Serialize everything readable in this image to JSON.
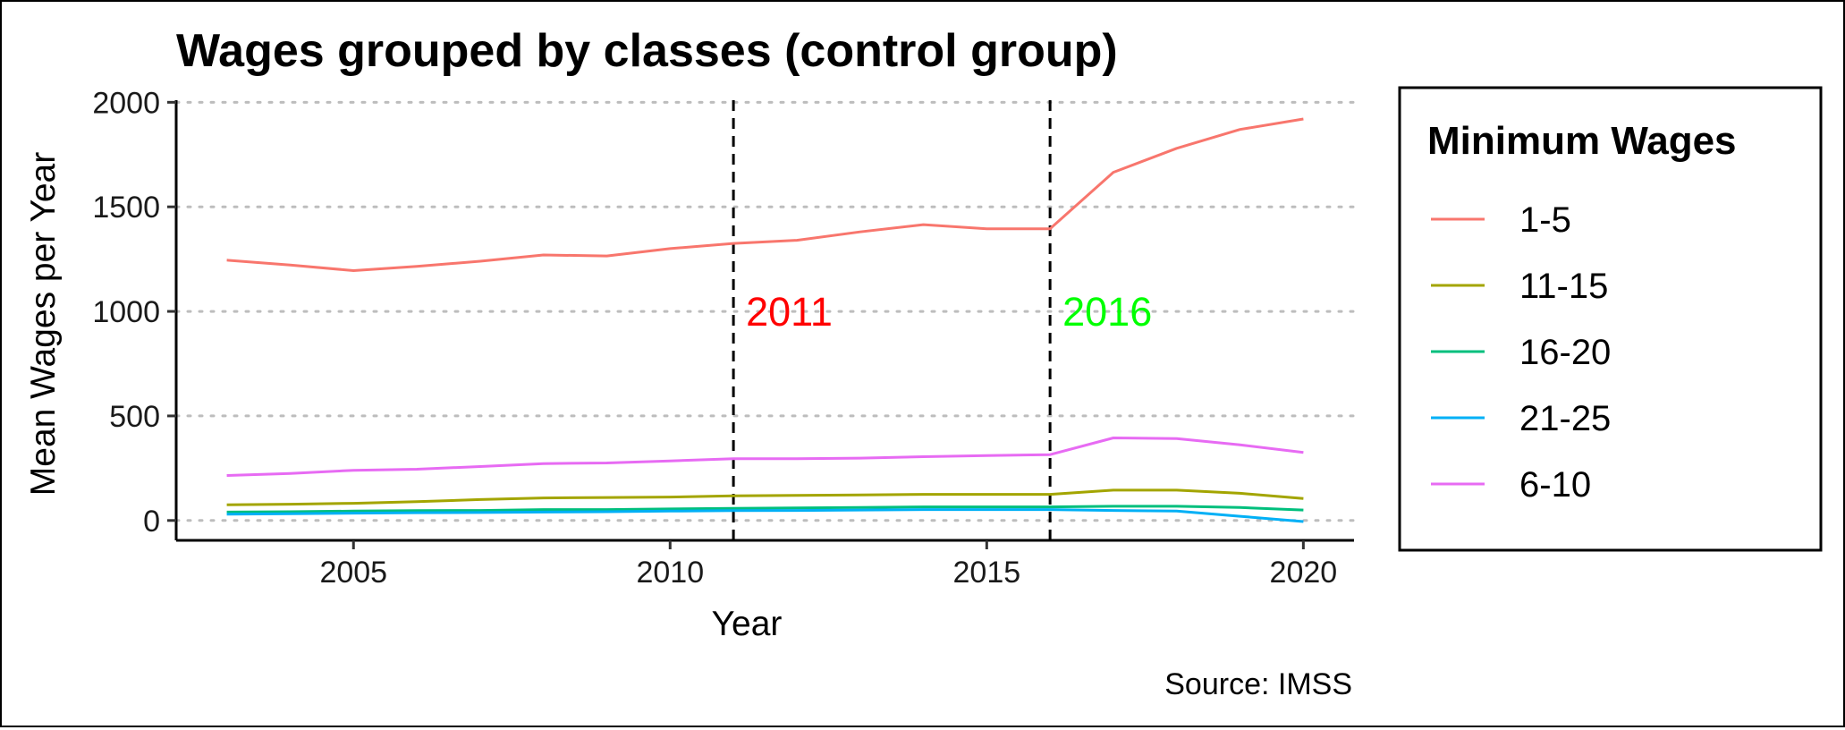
{
  "chart_data": {
    "type": "line",
    "title": "Wages grouped by classes (control group)",
    "xlabel": "Year",
    "ylabel": "Mean Wages per Year",
    "caption": "Source: IMSS",
    "xlim": [
      2002.2,
      2020.8
    ],
    "ylim": [
      -95,
      2010
    ],
    "x_ticks": [
      2005,
      2010,
      2015,
      2020
    ],
    "y_ticks": [
      0,
      500,
      1000,
      1500,
      2000
    ],
    "grid": "horizontal dotted",
    "x": [
      2003,
      2004,
      2005,
      2006,
      2007,
      2008,
      2009,
      2010,
      2011,
      2012,
      2013,
      2014,
      2015,
      2016,
      2017,
      2018,
      2019,
      2020
    ],
    "series": [
      {
        "name": "1-5",
        "color": "#F8766D",
        "values": [
          1245,
          1222,
          1195,
          1215,
          1240,
          1270,
          1265,
          1300,
          1325,
          1340,
          1380,
          1415,
          1395,
          1395,
          1665,
          1780,
          1870,
          1920
        ]
      },
      {
        "name": "11-15",
        "color": "#A3A500",
        "values": [
          75,
          78,
          82,
          90,
          100,
          108,
          110,
          112,
          118,
          120,
          122,
          125,
          125,
          125,
          145,
          145,
          130,
          105
        ]
      },
      {
        "name": "16-20",
        "color": "#00BF7D",
        "values": [
          40,
          42,
          45,
          47,
          48,
          52,
          52,
          55,
          58,
          60,
          62,
          65,
          65,
          65,
          68,
          68,
          62,
          50
        ]
      },
      {
        "name": "21-25",
        "color": "#00B0F6",
        "values": [
          30,
          32,
          35,
          37,
          38,
          40,
          42,
          45,
          47,
          48,
          50,
          52,
          52,
          52,
          48,
          45,
          20,
          -5
        ]
      },
      {
        "name": "6-10",
        "color": "#E76BF3",
        "values": [
          215,
          225,
          240,
          245,
          258,
          272,
          275,
          285,
          295,
          295,
          298,
          305,
          310,
          315,
          395,
          392,
          362,
          325
        ]
      }
    ],
    "vlines": [
      {
        "x": 2011,
        "label": "2011",
        "color": "#FF0000",
        "label_y": 1000
      },
      {
        "x": 2016,
        "label": "2016",
        "color": "#00FF00",
        "label_y": 1000
      }
    ],
    "legend": {
      "title": "Minimum Wages",
      "position": "right"
    }
  }
}
